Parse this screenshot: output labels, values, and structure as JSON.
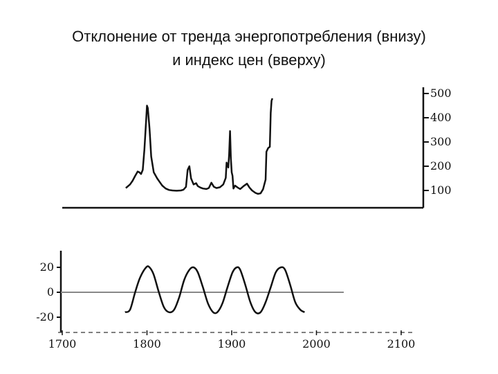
{
  "slide": {
    "title_line1": "Отклонение от тренда энергопотребления (внизу)",
    "title_line2": "и индекс цен (вверху)"
  },
  "chart_data": [
    {
      "type": "line",
      "title": "",
      "xlabel": "",
      "ylabel": "",
      "xlim": [
        1700,
        2100
      ],
      "ylim": [
        80,
        520
      ],
      "y_axis_side": "right",
      "yticks": [
        100,
        200,
        300,
        400,
        500
      ],
      "ytick_labels": [
        "100",
        "200",
        "300",
        "400",
        "500"
      ],
      "grid": false,
      "series": [
        {
          "color": "#111111",
          "points": [
            [
              1775,
              110
            ],
            [
              1780,
              125
            ],
            [
              1783,
              140
            ],
            [
              1786,
              160
            ],
            [
              1789,
              178
            ],
            [
              1791,
              175
            ],
            [
              1793,
              168
            ],
            [
              1795,
              185
            ],
            [
              1797,
              270
            ],
            [
              1799,
              390
            ],
            [
              1800,
              450
            ],
            [
              1801,
              440
            ],
            [
              1803,
              355
            ],
            [
              1805,
              240
            ],
            [
              1808,
              175
            ],
            [
              1812,
              150
            ],
            [
              1815,
              135
            ],
            [
              1818,
              120
            ],
            [
              1822,
              108
            ],
            [
              1826,
              102
            ],
            [
              1830,
              100
            ],
            [
              1835,
              99
            ],
            [
              1840,
              100
            ],
            [
              1843,
              103
            ],
            [
              1846,
              115
            ],
            [
              1848,
              185
            ],
            [
              1850,
              200
            ],
            [
              1852,
              150
            ],
            [
              1855,
              125
            ],
            [
              1858,
              130
            ],
            [
              1860,
              118
            ],
            [
              1863,
              112
            ],
            [
              1866,
              108
            ],
            [
              1870,
              106
            ],
            [
              1873,
              110
            ],
            [
              1876,
              132
            ],
            [
              1879,
              115
            ],
            [
              1882,
              110
            ],
            [
              1886,
              113
            ],
            [
              1890,
              125
            ],
            [
              1893,
              152
            ],
            [
              1894,
              215
            ],
            [
              1896,
              195
            ],
            [
              1897,
              250
            ],
            [
              1898,
              345
            ],
            [
              1899,
              230
            ],
            [
              1900,
              175
            ],
            [
              1901,
              160
            ],
            [
              1902,
              108
            ],
            [
              1904,
              120
            ],
            [
              1907,
              112
            ],
            [
              1910,
              106
            ],
            [
              1914,
              118
            ],
            [
              1918,
              128
            ],
            [
              1921,
              112
            ],
            [
              1924,
              100
            ],
            [
              1928,
              90
            ],
            [
              1931,
              86
            ],
            [
              1934,
              88
            ],
            [
              1937,
              105
            ],
            [
              1940,
              145
            ],
            [
              1941,
              260
            ],
            [
              1943,
              275
            ],
            [
              1945,
              280
            ],
            [
              1946,
              420
            ],
            [
              1947,
              470
            ],
            [
              1948,
              480
            ]
          ]
        }
      ]
    },
    {
      "type": "line",
      "title": "",
      "xlabel": "",
      "ylabel": "",
      "xlim": [
        1700,
        2100
      ],
      "ylim": [
        -25,
        25
      ],
      "y_axis_side": "left",
      "yticks": [
        20,
        0,
        -20
      ],
      "ytick_labels": [
        "20",
        "0",
        "-20"
      ],
      "xticks": [
        1700,
        1800,
        1900,
        2000,
        2100
      ],
      "xtick_labels": [
        "1700",
        "1800",
        "1900",
        "2000",
        "2100"
      ],
      "zero_line": true,
      "grid": false,
      "series": [
        {
          "color": "#111111",
          "points": [
            [
              1774,
              -16
            ],
            [
              1780,
              -14
            ],
            [
              1786,
              0
            ],
            [
              1792,
              12
            ],
            [
              1799,
              20
            ],
            [
              1803,
              20
            ],
            [
              1808,
              14
            ],
            [
              1814,
              0
            ],
            [
              1820,
              -12
            ],
            [
              1826,
              -16
            ],
            [
              1832,
              -14
            ],
            [
              1838,
              -4
            ],
            [
              1844,
              10
            ],
            [
              1850,
              18
            ],
            [
              1855,
              20
            ],
            [
              1860,
              16
            ],
            [
              1866,
              4
            ],
            [
              1872,
              -9
            ],
            [
              1878,
              -16
            ],
            [
              1883,
              -16
            ],
            [
              1889,
              -9
            ],
            [
              1895,
              4
            ],
            [
              1901,
              16
            ],
            [
              1906,
              20
            ],
            [
              1910,
              18
            ],
            [
              1916,
              6
            ],
            [
              1922,
              -8
            ],
            [
              1928,
              -16
            ],
            [
              1934,
              -16
            ],
            [
              1940,
              -8
            ],
            [
              1946,
              4
            ],
            [
              1952,
              16
            ],
            [
              1958,
              20
            ],
            [
              1963,
              18
            ],
            [
              1969,
              6
            ],
            [
              1975,
              -8
            ],
            [
              1981,
              -14
            ],
            [
              1986,
              -16
            ]
          ]
        }
      ]
    }
  ]
}
